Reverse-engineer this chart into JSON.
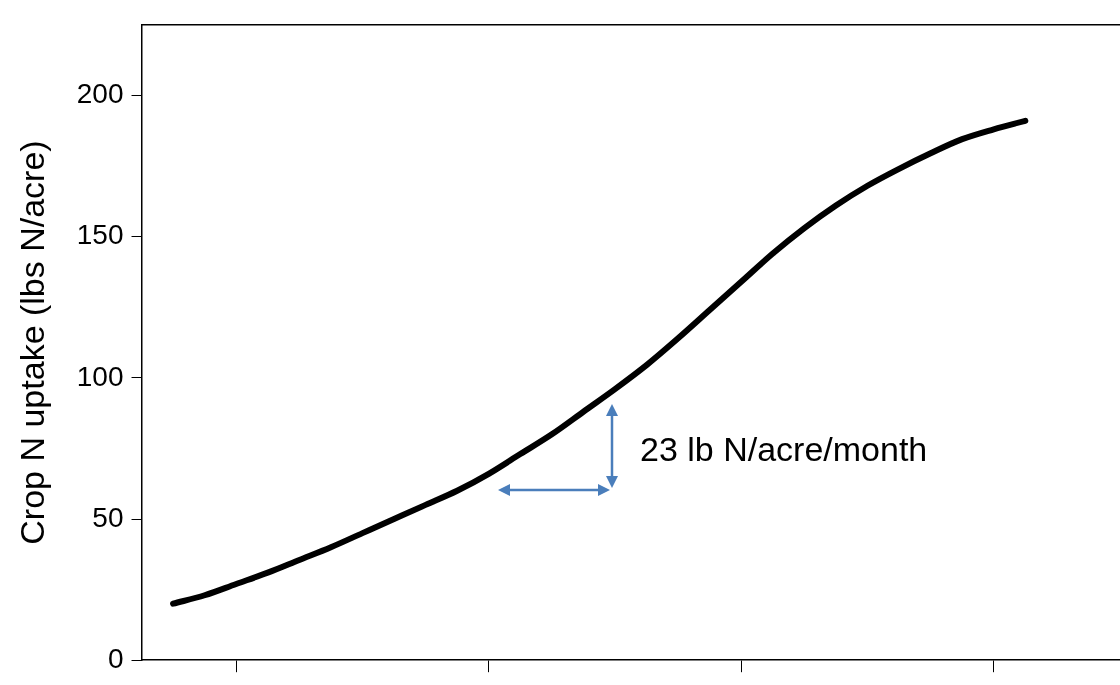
{
  "chart_data": {
    "type": "line",
    "ylabel": "Crop N uptake (lbs N/acre)",
    "categories": [
      null,
      null,
      null,
      null,
      null,
      null,
      null,
      null,
      null,
      null,
      null,
      null,
      null,
      null,
      null,
      null,
      null,
      null,
      null,
      null,
      null,
      null,
      null,
      null,
      null,
      null,
      null,
      null,
      null,
      null,
      null,
      null
    ],
    "series": [
      {
        "color": "#000000",
        "values": [
          null,
          20,
          23,
          27,
          31,
          35.5,
          40,
          45,
          50,
          55,
          60,
          66,
          73,
          80,
          88,
          96,
          104.5,
          114,
          124,
          134,
          144,
          153,
          161,
          168,
          174,
          179.5,
          184.5,
          188,
          191,
          null,
          null,
          null
        ]
      }
    ],
    "ylim": [
      0,
      225
    ],
    "yticks": [
      0,
      50,
      100,
      150,
      200
    ],
    "grid": false,
    "legend": false,
    "marker": "none",
    "line_style": "solid",
    "tick_labels": "y",
    "annotations": [
      "23 lb N/acre/month"
    ]
  }
}
